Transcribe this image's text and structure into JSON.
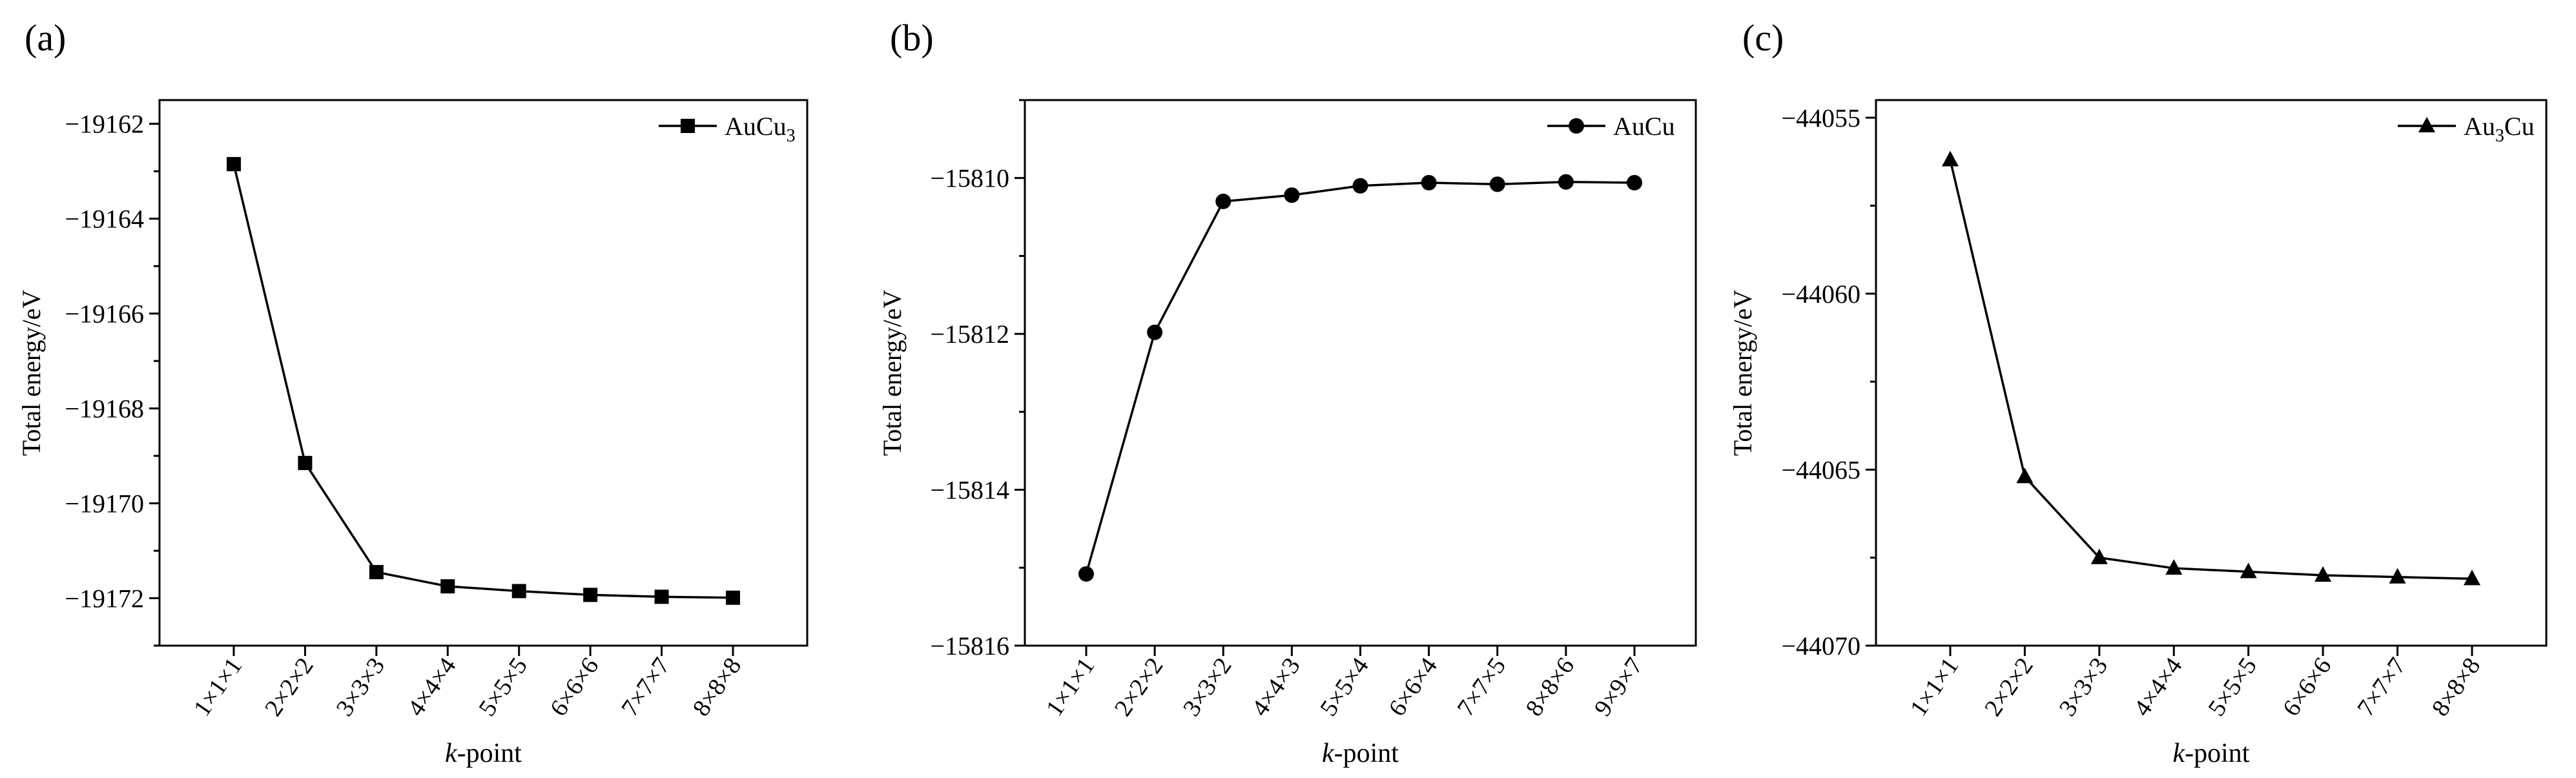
{
  "panels": [
    {
      "letter": "(a)",
      "ylabel": "Total energy/eV",
      "xlabel_italic": "k",
      "xlabel_rest": "-point",
      "legend": {
        "base": "AuCu",
        "sub": "3",
        "tail": ""
      }
    },
    {
      "letter": "(b)",
      "ylabel": "Total energy/eV",
      "xlabel_italic": "k",
      "xlabel_rest": "-point",
      "legend": {
        "base": "AuCu",
        "sub": "",
        "tail": ""
      }
    },
    {
      "letter": "(c)",
      "ylabel": "Total energy/eV",
      "xlabel_italic": "k",
      "xlabel_rest": "-point",
      "legend": {
        "base": "Au",
        "sub": "3",
        "tail": "Cu"
      }
    }
  ],
  "chart_data": [
    {
      "type": "line",
      "title": "",
      "xlabel": "k-point",
      "ylabel": "Total energy/eV",
      "categories": [
        "1×1×1",
        "2×2×2",
        "3×3×3",
        "4×4×4",
        "5×5×5",
        "6×6×6",
        "7×7×7",
        "8×8×8"
      ],
      "series": [
        {
          "name": "AuCu3",
          "marker": "square",
          "values": [
            -19162.85,
            -19169.15,
            -19171.45,
            -19171.75,
            -19171.85,
            -19171.93,
            -19171.97,
            -19171.99
          ]
        }
      ],
      "ylim": [
        -19173,
        -19161.5
      ],
      "yticks": [
        -19172,
        -19170,
        -19168,
        -19166,
        -19164,
        -19162
      ],
      "grid": false,
      "legend_position": "top-right"
    },
    {
      "type": "line",
      "title": "",
      "xlabel": "k-point",
      "ylabel": "Total energy/eV",
      "categories": [
        "1×1×1",
        "2×2×2",
        "3×3×2",
        "4×4×3",
        "5×5×4",
        "6×6×4",
        "7×7×5",
        "8×8×6",
        "9×9×7"
      ],
      "series": [
        {
          "name": "AuCu",
          "marker": "circle",
          "values": [
            -15815.08,
            -15811.98,
            -15810.3,
            -15810.22,
            -15810.1,
            -15810.06,
            -15810.08,
            -15810.05,
            -15810.06
          ]
        }
      ],
      "ylim": [
        -15816,
        -15809
      ],
      "yticks": [
        -15816,
        -15814,
        -15812,
        -15810
      ],
      "grid": false,
      "legend_position": "top-right"
    },
    {
      "type": "line",
      "title": "",
      "xlabel": "k-point",
      "ylabel": "Total energy/eV",
      "categories": [
        "1×1×1",
        "2×2×2",
        "3×3×3",
        "4×4×4",
        "5×5×5",
        "6×6×6",
        "7×7×7",
        "8×8×8"
      ],
      "series": [
        {
          "name": "Au3Cu",
          "marker": "triangle",
          "values": [
            -44056.2,
            -44065.2,
            -44067.5,
            -44067.8,
            -44067.9,
            -44068.0,
            -44068.05,
            -44068.1
          ]
        }
      ],
      "ylim": [
        -44070,
        -44054.5
      ],
      "yticks": [
        -44070,
        -44065,
        -44060,
        -44055
      ],
      "grid": false,
      "legend_position": "top-right"
    }
  ],
  "colors": {
    "line": "#000000",
    "axis": "#000000",
    "background": "#ffffff"
  }
}
